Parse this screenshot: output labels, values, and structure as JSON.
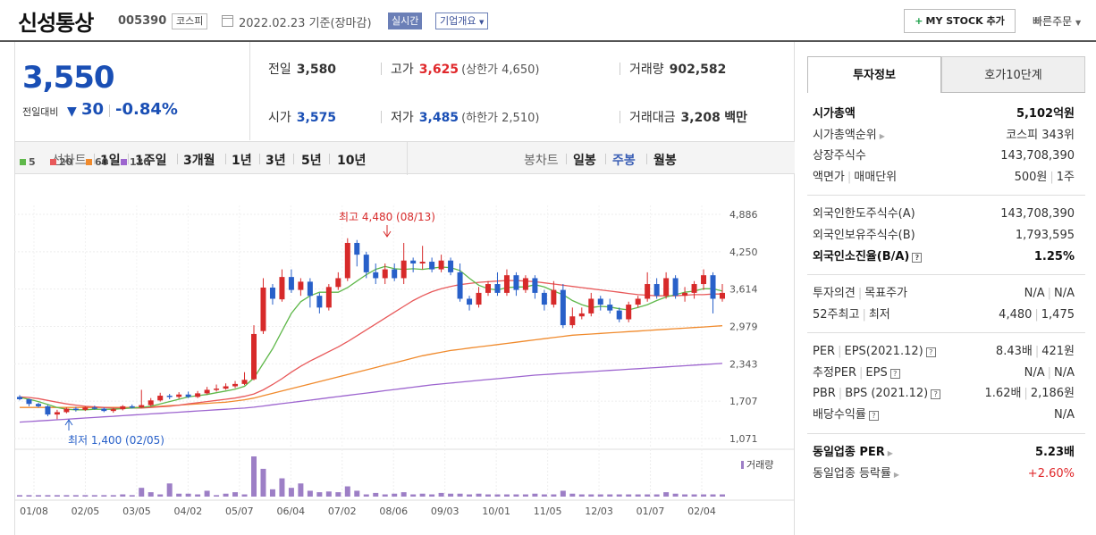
{
  "header": {
    "company": "신성통상",
    "code": "005390",
    "market": "코스피",
    "date": "2022.02.23",
    "date_suffix": "기준(장마감)",
    "realtime": "실시간",
    "overview": "기업개요",
    "mystock": "MY STOCK 추가",
    "quickorder": "빠른주문"
  },
  "price": {
    "current": "3,550",
    "vs_label": "전일대비",
    "change": "30",
    "rate": "-0.84%"
  },
  "quotes": {
    "prev_label": "전일",
    "prev": "3,580",
    "high_label": "고가",
    "high": "3,625",
    "upper_limit": "(상한가 4,650)",
    "volume_label": "거래량",
    "volume": "902,582",
    "open_label": "시가",
    "open": "3,575",
    "low_label": "저가",
    "low": "3,485",
    "lower_limit": "(하한가 2,510)",
    "amount_label": "거래대금",
    "amount": "3,208",
    "amount_unit": "백만"
  },
  "tabs": {
    "line_chart": "선차트",
    "periods": [
      "1일",
      "1주일",
      "3개월",
      "1년",
      "3년",
      "5년",
      "10년"
    ],
    "candle_chart": "봉차트",
    "candle_types": [
      "일봉",
      "주봉",
      "월봉"
    ],
    "active_candle": "주봉"
  },
  "legend": [
    "5",
    "20",
    "60",
    "120"
  ],
  "colors": {
    "ma5": "#5fb84a",
    "ma20": "#e8595a",
    "ma60": "#f08a2c",
    "ma120": "#9d65cf",
    "up": "#d72a2a",
    "down": "#2860c9",
    "volume": "#9d7fc6"
  },
  "chart_data": {
    "type": "candlestick",
    "y_ticks": [
      "4,886",
      "4,250",
      "3,614",
      "2,979",
      "2,343",
      "1,707",
      "1,071"
    ],
    "x_ticks": [
      "01/08",
      "02/05",
      "03/05",
      "04/02",
      "05/07",
      "06/04",
      "07/02",
      "08/06",
      "09/03",
      "10/01",
      "11/05",
      "12/03",
      "01/07",
      "02/04"
    ],
    "ylim": [
      1071,
      4886
    ],
    "high_annotation": "최고 4,480 (08/13)",
    "low_annotation": "최저 1,400 (02/05)",
    "volume_label": "거래량",
    "candles": [
      [
        1780,
        1740,
        1810,
        1720
      ],
      [
        1740,
        1660,
        1750,
        1620
      ],
      [
        1660,
        1620,
        1680,
        1600
      ],
      [
        1620,
        1480,
        1640,
        1450
      ],
      [
        1480,
        1520,
        1560,
        1400
      ],
      [
        1520,
        1580,
        1600,
        1500
      ],
      [
        1580,
        1560,
        1610,
        1530
      ],
      [
        1560,
        1600,
        1620,
        1540
      ],
      [
        1600,
        1580,
        1630,
        1560
      ],
      [
        1580,
        1540,
        1600,
        1520
      ],
      [
        1540,
        1570,
        1590,
        1510
      ],
      [
        1570,
        1620,
        1640,
        1550
      ],
      [
        1620,
        1600,
        1650,
        1580
      ],
      [
        1600,
        1640,
        1900,
        1590
      ],
      [
        1640,
        1720,
        1760,
        1620
      ],
      [
        1720,
        1800,
        1850,
        1700
      ],
      [
        1800,
        1780,
        1830,
        1740
      ],
      [
        1780,
        1820,
        1860,
        1750
      ],
      [
        1820,
        1780,
        1870,
        1760
      ],
      [
        1780,
        1840,
        1880,
        1760
      ],
      [
        1840,
        1900,
        1950,
        1820
      ],
      [
        1900,
        1920,
        1990,
        1870
      ],
      [
        1920,
        1960,
        2010,
        1900
      ],
      [
        1960,
        2000,
        2050,
        1930
      ],
      [
        2000,
        2070,
        2200,
        1980
      ],
      [
        2080,
        2850,
        3000,
        2060
      ],
      [
        2900,
        3640,
        3800,
        2850
      ],
      [
        3640,
        3450,
        3700,
        3350
      ],
      [
        3440,
        3820,
        3950,
        3400
      ],
      [
        3820,
        3600,
        3950,
        3550
      ],
      [
        3600,
        3740,
        3800,
        3500
      ],
      [
        3740,
        3500,
        3800,
        3300
      ],
      [
        3500,
        3300,
        3550,
        3200
      ],
      [
        3300,
        3650,
        3700,
        3250
      ],
      [
        3650,
        3800,
        3900,
        3600
      ],
      [
        3800,
        4400,
        4480,
        3750
      ],
      [
        4400,
        4200,
        4450,
        4000
      ],
      [
        4200,
        3900,
        4250,
        3800
      ],
      [
        3900,
        3800,
        4050,
        3700
      ],
      [
        3800,
        3950,
        4050,
        3700
      ],
      [
        3950,
        3800,
        4050,
        3750
      ],
      [
        3800,
        4100,
        4400,
        3700
      ],
      [
        4100,
        4050,
        4150,
        3900
      ],
      [
        4050,
        4080,
        4350,
        3950
      ],
      [
        4080,
        3950,
        4150,
        3900
      ],
      [
        3950,
        4100,
        4200,
        3900
      ],
      [
        4100,
        3900,
        4150,
        3850
      ],
      [
        3900,
        3450,
        4050,
        3400
      ],
      [
        3450,
        3350,
        3500,
        3250
      ],
      [
        3350,
        3550,
        3650,
        3300
      ],
      [
        3550,
        3700,
        3750,
        3500
      ],
      [
        3700,
        3550,
        3900,
        3500
      ],
      [
        3550,
        3850,
        3950,
        3500
      ],
      [
        3850,
        3600,
        3900,
        3500
      ],
      [
        3600,
        3800,
        3850,
        3550
      ],
      [
        3800,
        3550,
        3850,
        3450
      ],
      [
        3550,
        3350,
        3600,
        3250
      ],
      [
        3350,
        3600,
        3750,
        3300
      ],
      [
        3600,
        3000,
        3700,
        2950
      ],
      [
        3000,
        3150,
        3300,
        2950
      ],
      [
        3150,
        3200,
        3300,
        3100
      ],
      [
        3200,
        3450,
        3550,
        3150
      ],
      [
        3450,
        3350,
        3500,
        3250
      ],
      [
        3350,
        3250,
        3450,
        3200
      ],
      [
        3250,
        3100,
        3300,
        3050
      ],
      [
        3100,
        3350,
        3400,
        3050
      ],
      [
        3350,
        3450,
        3500,
        3300
      ],
      [
        3450,
        3700,
        3900,
        3400
      ],
      [
        3700,
        3500,
        3800,
        3450
      ],
      [
        3500,
        3800,
        3900,
        3450
      ],
      [
        3800,
        3500,
        3850,
        3450
      ],
      [
        3500,
        3550,
        3650,
        3400
      ],
      [
        3550,
        3700,
        3750,
        3450
      ],
      [
        3700,
        3850,
        3950,
        3600
      ],
      [
        3850,
        3450,
        3900,
        3200
      ],
      [
        3450,
        3550,
        3700,
        3400
      ]
    ],
    "ma5": [
      1770,
      1740,
      1700,
      1650,
      1600,
      1570,
      1560,
      1560,
      1570,
      1570,
      1570,
      1580,
      1590,
      1600,
      1620,
      1660,
      1700,
      1740,
      1780,
      1800,
      1820,
      1850,
      1880,
      1910,
      1960,
      2100,
      2350,
      2600,
      2900,
      3200,
      3400,
      3500,
      3560,
      3560,
      3560,
      3640,
      3750,
      3860,
      3950,
      4000,
      3960,
      3950,
      3960,
      3950,
      3970,
      3990,
      3980,
      3930,
      3800,
      3680,
      3620,
      3600,
      3640,
      3650,
      3650,
      3690,
      3650,
      3580,
      3520,
      3420,
      3350,
      3300,
      3320,
      3310,
      3280,
      3260,
      3300,
      3350,
      3420,
      3480,
      3520,
      3560,
      3580,
      3620,
      3620,
      3580
    ],
    "ma20": [
      1780,
      1770,
      1750,
      1720,
      1690,
      1660,
      1640,
      1620,
      1610,
      1600,
      1590,
      1590,
      1590,
      1590,
      1600,
      1610,
      1620,
      1640,
      1660,
      1680,
      1700,
      1720,
      1740,
      1760,
      1790,
      1830,
      1900,
      1990,
      2090,
      2200,
      2300,
      2390,
      2470,
      2550,
      2630,
      2720,
      2820,
      2920,
      3020,
      3120,
      3220,
      3320,
      3420,
      3500,
      3570,
      3620,
      3660,
      3690,
      3710,
      3730,
      3740,
      3750,
      3760,
      3760,
      3750,
      3740,
      3720,
      3700,
      3680,
      3660,
      3640,
      3620,
      3600,
      3580,
      3560,
      3540,
      3520,
      3510,
      3500,
      3500,
      3500,
      3510,
      3520,
      3520,
      3530,
      3530
    ],
    "ma60": [
      1600,
      1600,
      1600,
      1600,
      1600,
      1600,
      1600,
      1600,
      1600,
      1600,
      1600,
      1600,
      1600,
      1600,
      1610,
      1620,
      1630,
      1640,
      1650,
      1660,
      1670,
      1680,
      1690,
      1710,
      1730,
      1760,
      1800,
      1840,
      1880,
      1920,
      1960,
      2000,
      2040,
      2080,
      2120,
      2160,
      2200,
      2240,
      2280,
      2320,
      2360,
      2400,
      2440,
      2480,
      2510,
      2540,
      2570,
      2590,
      2610,
      2630,
      2650,
      2670,
      2690,
      2710,
      2730,
      2750,
      2770,
      2790,
      2810,
      2830,
      2840,
      2850,
      2860,
      2870,
      2880,
      2890,
      2900,
      2910,
      2920,
      2930,
      2940,
      2950,
      2960,
      2970,
      2980,
      2990
    ],
    "ma120": [
      1350,
      1360,
      1370,
      1380,
      1390,
      1400,
      1410,
      1420,
      1430,
      1440,
      1450,
      1460,
      1470,
      1480,
      1490,
      1500,
      1510,
      1520,
      1530,
      1540,
      1550,
      1560,
      1570,
      1580,
      1590,
      1605,
      1625,
      1645,
      1665,
      1685,
      1705,
      1725,
      1745,
      1765,
      1785,
      1805,
      1825,
      1845,
      1865,
      1885,
      1905,
      1925,
      1945,
      1965,
      1985,
      2000,
      2015,
      2030,
      2045,
      2060,
      2075,
      2090,
      2105,
      2120,
      2135,
      2150,
      2160,
      2170,
      2180,
      2190,
      2200,
      2210,
      2220,
      2230,
      2240,
      2250,
      2260,
      2270,
      2280,
      2290,
      2300,
      2310,
      2320,
      2330,
      2340,
      2350
    ],
    "volumes": [
      2,
      2,
      2,
      2,
      2,
      2,
      2,
      2,
      2,
      2,
      2,
      3,
      2,
      12,
      6,
      3,
      18,
      4,
      4,
      3,
      8,
      2,
      4,
      6,
      3,
      55,
      38,
      10,
      25,
      12,
      18,
      8,
      6,
      7,
      6,
      14,
      8,
      3,
      5,
      3,
      4,
      6,
      3,
      4,
      3,
      5,
      4,
      4,
      3,
      4,
      3,
      3,
      3,
      3,
      3,
      4,
      3,
      3,
      8,
      4,
      3,
      3,
      3,
      3,
      3,
      3,
      3,
      3,
      3,
      6,
      4,
      3,
      3,
      3,
      3,
      3
    ]
  },
  "invest": {
    "tab_active": "투자정보",
    "tab_other": "호가10단계",
    "rows1": [
      {
        "k": "시가총액",
        "v": "5,102억원"
      },
      {
        "k": "시가총액순위",
        "v": "코스피 343위"
      },
      {
        "k": "상장주식수",
        "v": "143,708,390"
      },
      {
        "k1": "액면가",
        "k2": "매매단위",
        "v1": "500원",
        "v2": "1주"
      }
    ],
    "rows2": [
      {
        "k": "외국인한도주식수(A)",
        "v": "143,708,390"
      },
      {
        "k": "외국인보유주식수(B)",
        "v": "1,793,595"
      },
      {
        "k": "외국인소진율(B/A)",
        "v": "1.25%"
      }
    ],
    "rows3": [
      {
        "k1": "투자의견",
        "k2": "목표주가",
        "v1": "N/A",
        "v2": "N/A"
      },
      {
        "k1": "52주최고",
        "k2": "최저",
        "v1": "4,480",
        "v2": "1,475"
      }
    ],
    "rows4": [
      {
        "k1": "PER",
        "k2": "EPS(2021.12)",
        "v1": "8.43배",
        "v2": "421원"
      },
      {
        "k1": "추정PER",
        "k2": "EPS",
        "v1": "N/A",
        "v2": "N/A"
      },
      {
        "k1": "PBR",
        "k2": "BPS (2021.12)",
        "v1": "1.62배",
        "v2": "2,186원"
      },
      {
        "k": "배당수익률",
        "v": "N/A"
      }
    ],
    "rows5": [
      {
        "k": "동일업종 PER",
        "v": "5.23배"
      },
      {
        "k": "동일업종 등락률",
        "v": "+2.60%"
      }
    ]
  }
}
